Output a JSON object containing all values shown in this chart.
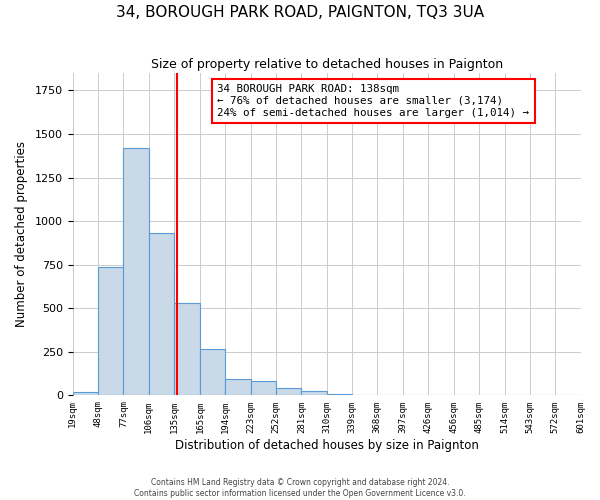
{
  "title": "34, BOROUGH PARK ROAD, PAIGNTON, TQ3 3UA",
  "subtitle": "Size of property relative to detached houses in Paignton",
  "xlabel": "Distribution of detached houses by size in Paignton",
  "ylabel": "Number of detached properties",
  "bar_values": [
    20,
    735,
    1420,
    935,
    530,
    265,
    95,
    85,
    45,
    25,
    10,
    5,
    2,
    2,
    1,
    1,
    1,
    1,
    0,
    0
  ],
  "bin_edges": [
    19,
    48,
    77,
    106,
    135,
    165,
    194,
    223,
    252,
    281,
    310,
    339,
    368,
    397,
    426,
    456,
    485,
    514,
    543,
    572,
    601
  ],
  "tick_labels": [
    "19sqm",
    "48sqm",
    "77sqm",
    "106sqm",
    "135sqm",
    "165sqm",
    "194sqm",
    "223sqm",
    "252sqm",
    "281sqm",
    "310sqm",
    "339sqm",
    "368sqm",
    "397sqm",
    "426sqm",
    "456sqm",
    "485sqm",
    "514sqm",
    "543sqm",
    "572sqm",
    "601sqm"
  ],
  "bar_color": "#c9d9e8",
  "bar_edge_color": "#5b9bd5",
  "vline_x": 138,
  "vline_color": "red",
  "annotation_title": "34 BOROUGH PARK ROAD: 138sqm",
  "annotation_line1": "← 76% of detached houses are smaller (3,174)",
  "annotation_line2": "24% of semi-detached houses are larger (1,014) →",
  "annotation_box_color": "white",
  "annotation_box_edge": "red",
  "ylim": [
    0,
    1850
  ],
  "footer_line1": "Contains HM Land Registry data © Crown copyright and database right 2024.",
  "footer_line2": "Contains public sector information licensed under the Open Government Licence v3.0.",
  "background_color": "#ffffff",
  "grid_color": "#cccccc"
}
